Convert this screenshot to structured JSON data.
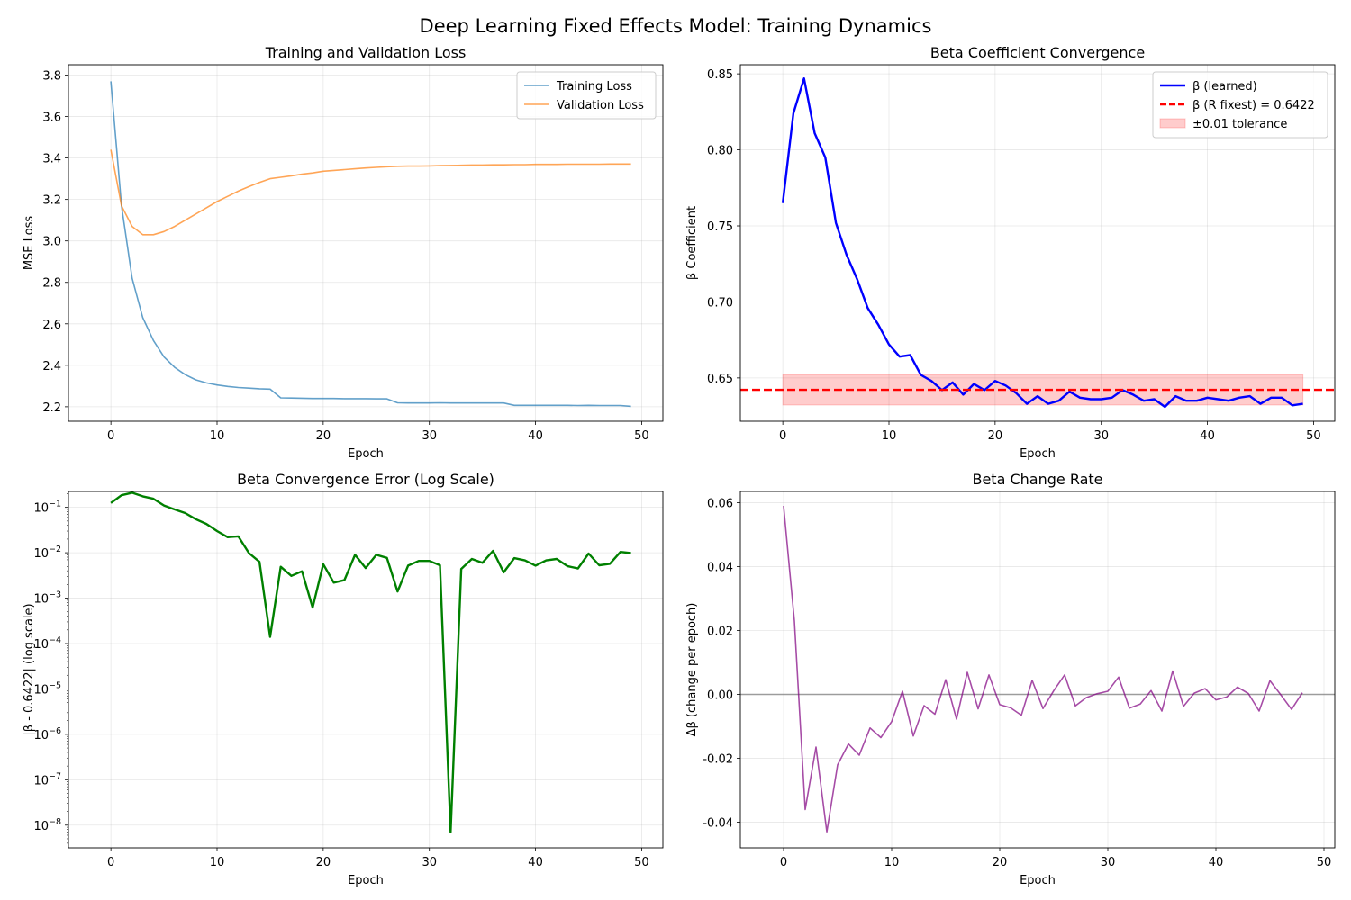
{
  "figure": {
    "suptitle": "Deep Learning Fixed Effects Model: Training Dynamics"
  },
  "chart_data": [
    {
      "type": "line",
      "title": "Training and Validation Loss",
      "xlabel": "Epoch",
      "ylabel": "MSE Loss",
      "xlim": [
        -4,
        52
      ],
      "ylim": [
        2.13,
        3.85
      ],
      "xticks": [
        0,
        10,
        20,
        30,
        40,
        50
      ],
      "yticks": [
        2.2,
        2.4,
        2.6,
        2.8,
        3.0,
        3.2,
        3.4,
        3.6,
        3.8
      ],
      "ytick_decimals": 1,
      "grid": true,
      "legend": "top-right",
      "x": [
        0,
        1,
        2,
        3,
        4,
        5,
        6,
        7,
        8,
        9,
        10,
        11,
        12,
        13,
        14,
        15,
        16,
        17,
        18,
        19,
        20,
        21,
        22,
        23,
        24,
        25,
        26,
        27,
        28,
        29,
        30,
        31,
        32,
        33,
        34,
        35,
        36,
        37,
        38,
        39,
        40,
        41,
        42,
        43,
        44,
        45,
        46,
        47,
        48,
        49
      ],
      "series": [
        {
          "name": "Training Loss",
          "color": "#1f77b4",
          "opacity": 0.7,
          "values": [
            3.77,
            3.17,
            2.82,
            2.63,
            2.52,
            2.44,
            2.39,
            2.355,
            2.33,
            2.315,
            2.305,
            2.298,
            2.293,
            2.29,
            2.287,
            2.285,
            2.243,
            2.242,
            2.241,
            2.24,
            2.24,
            2.24,
            2.239,
            2.239,
            2.239,
            2.238,
            2.238,
            2.219,
            2.218,
            2.218,
            2.218,
            2.219,
            2.218,
            2.218,
            2.218,
            2.218,
            2.218,
            2.218,
            2.207,
            2.207,
            2.207,
            2.207,
            2.207,
            2.207,
            2.206,
            2.207,
            2.206,
            2.206,
            2.206,
            2.202
          ]
        },
        {
          "name": "Validation Loss",
          "color": "#ff7f0e",
          "opacity": 0.7,
          "values": [
            3.44,
            3.17,
            3.07,
            3.03,
            3.03,
            3.045,
            3.07,
            3.1,
            3.13,
            3.16,
            3.19,
            3.215,
            3.24,
            3.262,
            3.282,
            3.3,
            3.307,
            3.314,
            3.322,
            3.328,
            3.336,
            3.34,
            3.344,
            3.348,
            3.352,
            3.355,
            3.358,
            3.36,
            3.361,
            3.361,
            3.362,
            3.363,
            3.364,
            3.365,
            3.366,
            3.366,
            3.367,
            3.367,
            3.368,
            3.368,
            3.369,
            3.369,
            3.369,
            3.37,
            3.37,
            3.37,
            3.37,
            3.371,
            3.371,
            3.371
          ]
        }
      ]
    },
    {
      "type": "line",
      "title": "Beta Coefficient Convergence",
      "xlabel": "Epoch",
      "ylabel": "β Coefficient",
      "xlim": [
        -4,
        52
      ],
      "ylim": [
        0.6215,
        0.856
      ],
      "xticks": [
        0,
        10,
        20,
        30,
        40,
        50
      ],
      "yticks": [
        0.65,
        0.7,
        0.75,
        0.8,
        0.85
      ],
      "ytick_decimals": 2,
      "grid": true,
      "legend": "top-right",
      "reference_line": {
        "name": "β (R fixest) = 0.6422",
        "value": 0.6422,
        "color": "#ff0000"
      },
      "tolerance_band": {
        "name": "±0.01 tolerance",
        "low": 0.6322,
        "high": 0.6522,
        "x_range": [
          0,
          49
        ],
        "color": "#ff0000"
      },
      "x": [
        0,
        1,
        2,
        3,
        4,
        5,
        6,
        7,
        8,
        9,
        10,
        11,
        12,
        13,
        14,
        15,
        16,
        17,
        18,
        19,
        20,
        21,
        22,
        23,
        24,
        25,
        26,
        27,
        28,
        29,
        30,
        31,
        32,
        33,
        34,
        35,
        36,
        37,
        38,
        39,
        40,
        41,
        42,
        43,
        44,
        45,
        46,
        47,
        48,
        49
      ],
      "series": [
        {
          "name": "β (learned)",
          "color": "#0000ff",
          "values": [
            0.765,
            0.824,
            0.847,
            0.811,
            0.795,
            0.752,
            0.731,
            0.715,
            0.696,
            0.685,
            0.672,
            0.664,
            0.665,
            0.652,
            0.648,
            0.642,
            0.647,
            0.639,
            0.646,
            0.642,
            0.648,
            0.645,
            0.64,
            0.633,
            0.638,
            0.633,
            0.635,
            0.641,
            0.637,
            0.636,
            0.636,
            0.637,
            0.642,
            0.639,
            0.635,
            0.636,
            0.631,
            0.638,
            0.635,
            0.635,
            0.637,
            0.636,
            0.635,
            0.637,
            0.638,
            0.633,
            0.637,
            0.637,
            0.632,
            0.633
          ]
        }
      ]
    },
    {
      "type": "line",
      "title": "Beta Convergence Error (Log Scale)",
      "xlabel": "Epoch",
      "ylabel": "|β - 0.6422| (log scale)",
      "xlim": [
        -4,
        52
      ],
      "log_y": true,
      "ylim_exp": [
        -8.5,
        -0.65
      ],
      "yticks_exp": [
        -8,
        -7,
        -6,
        -5,
        -4,
        -3,
        -2,
        -1
      ],
      "ytick_labels": [
        {
          "base": "10",
          "exp": "−8"
        },
        {
          "base": "10",
          "exp": "−7"
        },
        {
          "base": "10",
          "exp": "−6"
        },
        {
          "base": "10",
          "exp": "−5"
        },
        {
          "base": "10",
          "exp": "−4"
        },
        {
          "base": "10",
          "exp": "−3"
        },
        {
          "base": "10",
          "exp": "−2"
        },
        {
          "base": "10",
          "exp": "−1"
        }
      ],
      "xticks": [
        0,
        10,
        20,
        30,
        40,
        50
      ],
      "grid": true,
      "x": [
        0,
        1,
        2,
        3,
        4,
        5,
        6,
        7,
        8,
        9,
        10,
        11,
        12,
        13,
        14,
        15,
        16,
        17,
        18,
        19,
        20,
        21,
        22,
        23,
        24,
        25,
        26,
        27,
        28,
        29,
        30,
        31,
        32,
        33,
        34,
        35,
        36,
        37,
        38,
        39,
        40,
        41,
        42,
        43,
        44,
        45,
        46,
        47,
        48,
        49
      ],
      "series": [
        {
          "color": "#008000",
          "values": [
            0.125,
            0.185,
            0.21,
            0.175,
            0.155,
            0.11,
            0.09,
            0.075,
            0.055,
            0.043,
            0.03,
            0.022,
            0.023,
            0.0098,
            0.0063,
            0.00014,
            0.0049,
            0.0031,
            0.0039,
            0.00062,
            0.0056,
            0.0022,
            0.0025,
            0.009,
            0.0046,
            0.009,
            0.0077,
            0.0014,
            0.0052,
            0.0066,
            0.0066,
            0.0053,
            7e-09,
            0.0044,
            0.0073,
            0.006,
            0.011,
            0.0037,
            0.0076,
            0.0068,
            0.0052,
            0.0068,
            0.0073,
            0.0051,
            0.0045,
            0.0096,
            0.0053,
            0.0057,
            0.0104,
            0.0098
          ]
        }
      ]
    },
    {
      "type": "line",
      "title": "Beta Change Rate",
      "xlabel": "Epoch",
      "ylabel": "Δβ (change per epoch)",
      "xlim": [
        -4,
        51
      ],
      "ylim": [
        -0.048,
        0.0635
      ],
      "xticks": [
        0,
        10,
        20,
        30,
        40,
        50
      ],
      "yticks": [
        -0.04,
        -0.02,
        0.0,
        0.02,
        0.04,
        0.06
      ],
      "ytick_decimals": 2,
      "grid": true,
      "zero_line": {
        "value": 0,
        "color": "#808080"
      },
      "x": [
        0,
        1,
        2,
        3,
        4,
        5,
        6,
        7,
        8,
        9,
        10,
        11,
        12,
        13,
        14,
        15,
        16,
        17,
        18,
        19,
        20,
        21,
        22,
        23,
        24,
        25,
        26,
        27,
        28,
        29,
        30,
        31,
        32,
        33,
        34,
        35,
        36,
        37,
        38,
        39,
        40,
        41,
        42,
        43,
        44,
        45,
        46,
        47,
        48
      ],
      "series": [
        {
          "color": "#800080",
          "opacity": 0.7,
          "values": [
            0.059,
            0.023,
            -0.036,
            -0.0165,
            -0.043,
            -0.022,
            -0.0155,
            -0.019,
            -0.0105,
            -0.0135,
            -0.0085,
            0.001,
            -0.013,
            -0.0035,
            -0.0062,
            0.0046,
            -0.0077,
            0.0069,
            -0.0045,
            0.0061,
            -0.0032,
            -0.0042,
            -0.0065,
            0.0044,
            -0.0044,
            0.0012,
            0.0061,
            -0.0036,
            -0.001,
            0.0002,
            0.001,
            0.0054,
            -0.0043,
            -0.003,
            0.0012,
            -0.0052,
            0.0073,
            -0.0037,
            0.0004,
            0.0018,
            -0.0017,
            -0.0008,
            0.0023,
            0.0003,
            -0.0052,
            0.0043,
            -0.0001,
            -0.0047,
            0.0005
          ]
        }
      ]
    }
  ]
}
